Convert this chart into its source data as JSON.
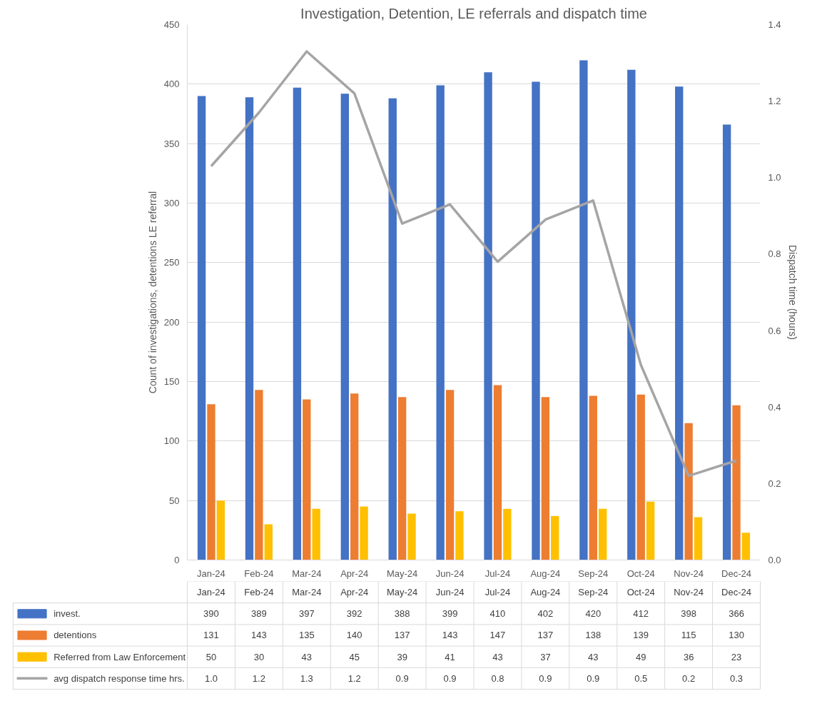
{
  "chart_data": {
    "type": "bar",
    "title": "Investigation, Detention, LE referrals and dispatch time",
    "ylabel": "Count of investigations, detentions LE referral",
    "y2label": "Dispatch time (hours)",
    "categories": [
      "Jan-24",
      "Feb-24",
      "Mar-24",
      "Apr-24",
      "May-24",
      "Jun-24",
      "Jul-24",
      "Aug-24",
      "Sep-24",
      "Oct-24",
      "Nov-24",
      "Dec-24"
    ],
    "series": [
      {
        "name": "invest.",
        "color": "#4472c4",
        "values": [
          390,
          389,
          397,
          392,
          388,
          399,
          410,
          402,
          420,
          412,
          398,
          366
        ],
        "value_labels": [
          "390",
          "389",
          "397",
          "392",
          "388",
          "399",
          "410",
          "402",
          "420",
          "412",
          "398",
          "366"
        ]
      },
      {
        "name": "detentions",
        "color": "#ed7d31",
        "values": [
          131,
          143,
          135,
          140,
          137,
          143,
          147,
          137,
          138,
          139,
          115,
          130
        ],
        "value_labels": [
          "131",
          "143",
          "135",
          "140",
          "137",
          "143",
          "147",
          "137",
          "138",
          "139",
          "115",
          "130"
        ]
      },
      {
        "name": "Referred from Law Enforcement",
        "color": "#ffc000",
        "values": [
          50,
          30,
          43,
          45,
          39,
          41,
          43,
          37,
          43,
          49,
          36,
          23
        ],
        "value_labels": [
          "50",
          "30",
          "43",
          "45",
          "39",
          "41",
          "43",
          "37",
          "43",
          "49",
          "36",
          "23"
        ]
      },
      {
        "name": "avg dispatch response time hrs.",
        "type": "line",
        "axis": "y2",
        "color": "#a5a5a5",
        "values": [
          1.03,
          1.17,
          1.33,
          1.22,
          0.88,
          0.93,
          0.78,
          0.89,
          0.94,
          0.51,
          0.22,
          0.26
        ],
        "value_labels": [
          "1.0",
          "1.2",
          "1.3",
          "1.2",
          "0.9",
          "0.9",
          "0.8",
          "0.9",
          "0.9",
          "0.5",
          "0.2",
          "0.3"
        ]
      }
    ],
    "ylim": [
      0,
      450
    ],
    "yticks": [
      0,
      50,
      100,
      150,
      200,
      250,
      300,
      350,
      400,
      450
    ],
    "y2lim": [
      0,
      1.4
    ],
    "y2ticks": [
      {
        "value": 0,
        "label": "0.0"
      },
      {
        "value": 0.2,
        "label": "0.2"
      },
      {
        "value": 0.4,
        "label": "0.4"
      },
      {
        "value": 0.6,
        "label": "0.6"
      },
      {
        "value": 0.8,
        "label": "0.8"
      },
      {
        "value": 1.0,
        "label": "1.0"
      },
      {
        "value": 1.2,
        "label": "1.2"
      },
      {
        "value": 1.4,
        "label": "1.4"
      }
    ],
    "grid": "y",
    "legend": "bottom"
  }
}
